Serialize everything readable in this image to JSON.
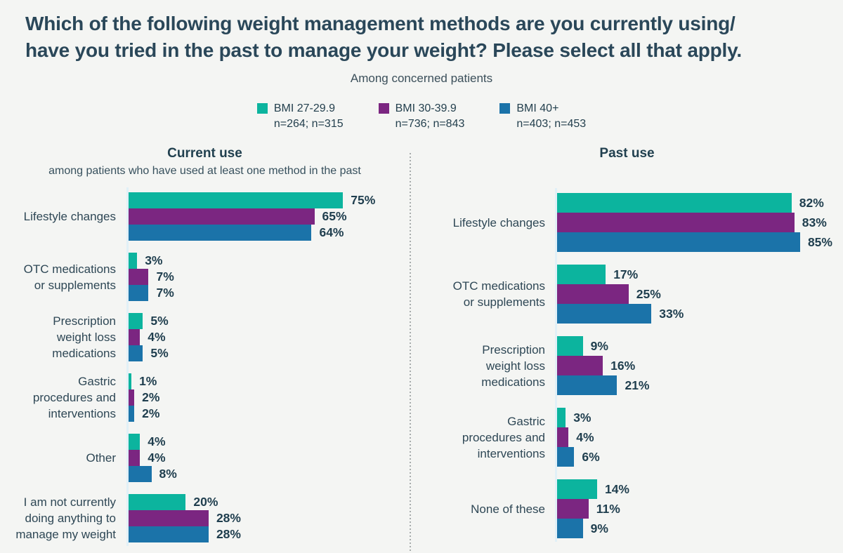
{
  "header": {
    "title": "Which of the following weight management methods are you currently using/\nhave you tried in the past to manage your weight? Please select all that apply.",
    "subtitle": "Among concerned patients"
  },
  "legend": [
    {
      "label": "BMI 27-29.9",
      "n": "n=264; n=315",
      "color": "#0CB49E"
    },
    {
      "label": "BMI 30-39.9",
      "n": "n=736; n=843",
      "color": "#7B2681"
    },
    {
      "label": "BMI 40+",
      "n": "n=403; n=453",
      "color": "#1B73A9"
    }
  ],
  "colors": {
    "teal": "#0CB49E",
    "purple": "#7B2681",
    "blue": "#1B73A9",
    "title_text": "#2A4759",
    "body_text": "#2E4755",
    "value_text": "#1F3E4E",
    "axis_line": "#E1F0F7",
    "divider": "#A7ACAC",
    "background": "#F4F5F3"
  },
  "chart_data": [
    {
      "type": "bar",
      "orientation": "horizontal",
      "panel": "left",
      "title": "Current use",
      "subtitle": "among patients who have used at least one method in the past",
      "unit": "%",
      "xlim": [
        0,
        100
      ],
      "grid": false,
      "legend_position": "top-center",
      "categories": [
        "Lifestyle changes",
        "OTC medications\nor supplements",
        "Prescription\nweight loss\nmedications",
        "Gastric\nprocedures and\ninterventions",
        "Other",
        "I am not currently\ndoing anything to\nmanage my weight"
      ],
      "series": [
        {
          "name": "BMI 27-29.9",
          "values": [
            75,
            3,
            5,
            1,
            4,
            20
          ]
        },
        {
          "name": "BMI 30-39.9",
          "values": [
            65,
            7,
            4,
            2,
            4,
            28
          ]
        },
        {
          "name": "BMI 40+",
          "values": [
            64,
            7,
            5,
            2,
            8,
            28
          ]
        }
      ]
    },
    {
      "type": "bar",
      "orientation": "horizontal",
      "panel": "right",
      "title": "Past use",
      "subtitle": "",
      "unit": "%",
      "xlim": [
        0,
        100
      ],
      "grid": false,
      "categories": [
        "Lifestyle changes",
        "OTC medications\nor supplements",
        "Prescription\nweight loss\nmedications",
        "Gastric\nprocedures and\ninterventions",
        "None of these"
      ],
      "series": [
        {
          "name": "BMI 27-29.9",
          "values": [
            82,
            17,
            9,
            3,
            14
          ]
        },
        {
          "name": "BMI 30-39.9",
          "values": [
            83,
            25,
            16,
            4,
            11
          ]
        },
        {
          "name": "BMI 40+",
          "values": [
            85,
            33,
            21,
            6,
            9
          ]
        }
      ]
    }
  ]
}
